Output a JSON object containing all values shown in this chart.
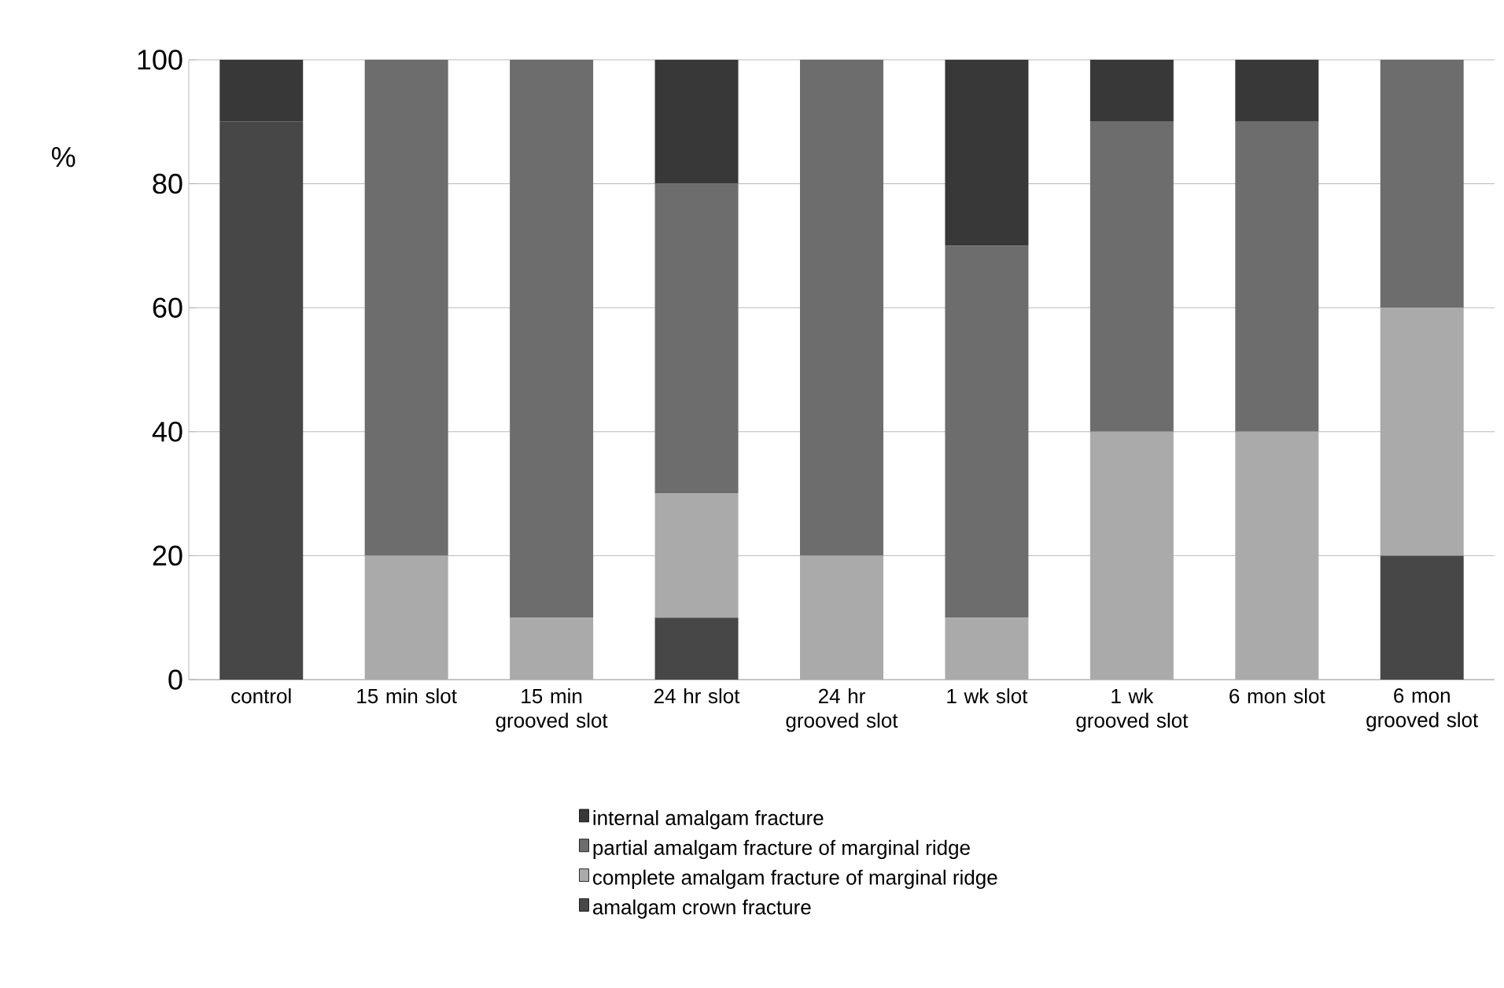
{
  "chart_data": {
    "type": "bar",
    "stacked": true,
    "ylabel": "%",
    "categories": [
      "control",
      "15 min slot",
      "15 min grooved slot",
      "24 hr slot",
      "24 hr grooved slot",
      "1 wk slot",
      "1 wk grooved slot",
      "6 mon slot",
      "6 mon grooved slot"
    ],
    "series": [
      {
        "name": "amalgam crown fracture",
        "color": "#474747",
        "values": [
          90,
          0,
          0,
          10,
          0,
          0,
          0,
          0,
          20
        ]
      },
      {
        "name": "complete amalgam fracture of marginal ridge",
        "color": "#aaaaaa",
        "values": [
          0,
          20,
          10,
          20,
          20,
          10,
          40,
          40,
          40
        ]
      },
      {
        "name": "partial amalgam fracture of marginal ridge",
        "color": "#6d6d6d",
        "values": [
          0,
          80,
          90,
          50,
          80,
          60,
          50,
          50,
          40
        ]
      },
      {
        "name": "internal amalgam fracture",
        "color": "#383838",
        "values": [
          10,
          0,
          0,
          20,
          0,
          30,
          10,
          10,
          0
        ]
      }
    ],
    "ylim": [
      0,
      100
    ],
    "yticks": [
      0,
      20,
      40,
      60,
      80,
      100
    ],
    "grid": "y",
    "legend": "bottom"
  }
}
